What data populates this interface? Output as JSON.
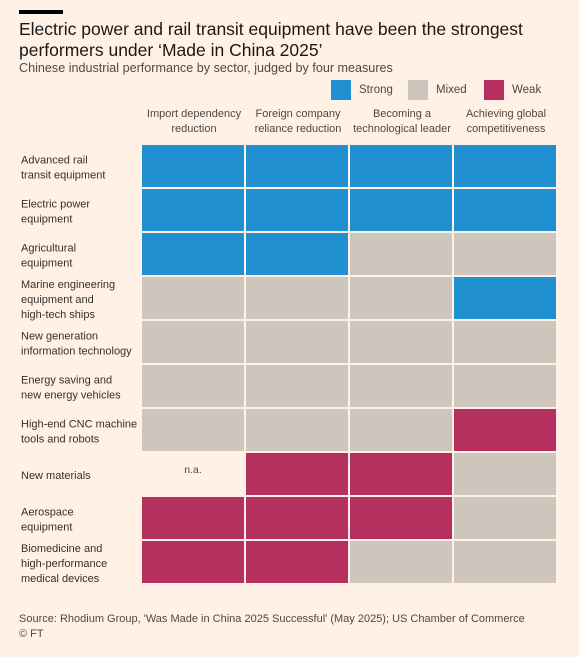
{
  "title": "Electric power and rail transit equipment have been the strongest performers under ‘Made in China 2025’",
  "subtitle": "Chinese industrial performance by sector, judged by four measures",
  "legend": [
    {
      "label": "Strong",
      "color": "#2190d1"
    },
    {
      "label": "Mixed",
      "color": "#cec5bd"
    },
    {
      "label": "Weak",
      "color": "#b5305e"
    }
  ],
  "na_color": "#fff1e5",
  "chart_data": {
    "type": "table",
    "columns": [
      [
        "Import dependency",
        "reduction"
      ],
      [
        "Foreign company",
        "reliance reduction"
      ],
      [
        "Becoming a",
        "technological leader"
      ],
      [
        "Achieving global",
        "competitiveness"
      ]
    ],
    "rows": [
      {
        "label": [
          "Advanced rail",
          "transit equipment"
        ],
        "values": [
          "Strong",
          "Strong",
          "Strong",
          "Strong"
        ]
      },
      {
        "label": [
          "Electric power",
          "equipment"
        ],
        "values": [
          "Strong",
          "Strong",
          "Strong",
          "Strong"
        ]
      },
      {
        "label": [
          "Agricultural",
          "equipment"
        ],
        "values": [
          "Strong",
          "Strong",
          "Mixed",
          "Mixed"
        ]
      },
      {
        "label": [
          "Marine engineering",
          "equipment and",
          "high-tech ships"
        ],
        "values": [
          "Mixed",
          "Mixed",
          "Mixed",
          "Strong"
        ]
      },
      {
        "label": [
          "New generation",
          "information technology"
        ],
        "values": [
          "Mixed",
          "Mixed",
          "Mixed",
          "Mixed"
        ]
      },
      {
        "label": [
          "Energy saving and",
          "new energy vehicles"
        ],
        "values": [
          "Mixed",
          "Mixed",
          "Mixed",
          "Mixed"
        ]
      },
      {
        "label": [
          "High-end CNC machine",
          "tools and robots"
        ],
        "values": [
          "Mixed",
          "Mixed",
          "Mixed",
          "Weak"
        ]
      },
      {
        "label": [
          "New materials"
        ],
        "values": [
          "n.a.",
          "Weak",
          "Weak",
          "Mixed"
        ]
      },
      {
        "label": [
          "Aerospace",
          "equipment"
        ],
        "values": [
          "Weak",
          "Weak",
          "Weak",
          "Mixed"
        ]
      },
      {
        "label": [
          "Biomedicine and",
          "high-performance",
          "medical devices"
        ],
        "values": [
          "Weak",
          "Weak",
          "Mixed",
          "Mixed"
        ]
      }
    ]
  },
  "source": "Source: Rhodium Group, 'Was Made in China 2025 Successful' (May 2025); US Chamber of Commerce",
  "credit": "© FT"
}
